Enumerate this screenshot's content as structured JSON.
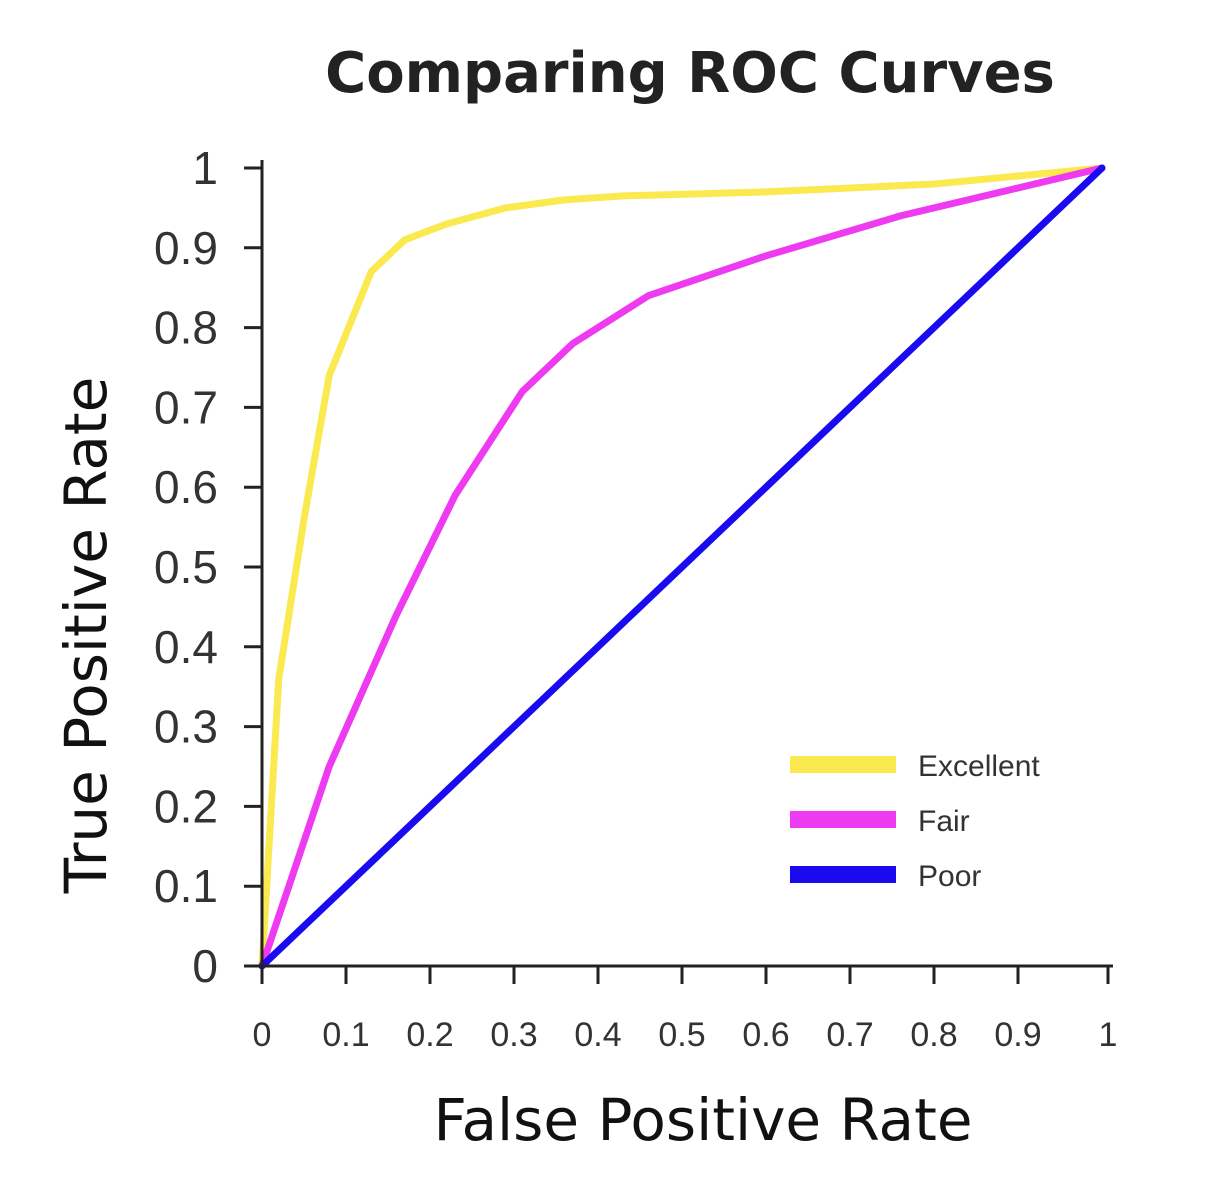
{
  "chart_data": {
    "type": "line",
    "title": "Comparing ROC Curves",
    "xlabel": "False Positive Rate",
    "ylabel": "True Positive Rate",
    "xlim": [
      0,
      1
    ],
    "ylim": [
      0,
      1
    ],
    "x_ticks": [
      "0",
      "0.1",
      "0.2",
      "0.3",
      "0.4",
      "0.5",
      "0.6",
      "0.7",
      "0.8",
      "0.9",
      "1"
    ],
    "y_ticks": [
      "0",
      "0.1",
      "0.2",
      "0.3",
      "0.4",
      "0.5",
      "0.6",
      "0.7",
      "0.8",
      "0.9",
      "1"
    ],
    "grid": false,
    "legend_position": "bottom-right",
    "series": [
      {
        "name": "Excellent",
        "color": "#FAE94F",
        "x": [
          0,
          0.02,
          0.05,
          0.08,
          0.13,
          0.17,
          0.22,
          0.29,
          0.36,
          0.43,
          0.6,
          0.8,
          1.0
        ],
        "y": [
          0,
          0.36,
          0.56,
          0.74,
          0.87,
          0.91,
          0.93,
          0.95,
          0.96,
          0.965,
          0.97,
          0.98,
          1.0
        ]
      },
      {
        "name": "Fair",
        "color": "#EE3BF1",
        "x": [
          0,
          0.08,
          0.16,
          0.23,
          0.31,
          0.37,
          0.46,
          0.6,
          0.76,
          1.0
        ],
        "y": [
          0,
          0.25,
          0.44,
          0.59,
          0.72,
          0.78,
          0.84,
          0.89,
          0.94,
          1.0
        ]
      },
      {
        "name": "Poor",
        "color": "#1A0AF0",
        "x": [
          0,
          1.0
        ],
        "y": [
          0,
          1.0
        ]
      }
    ]
  }
}
